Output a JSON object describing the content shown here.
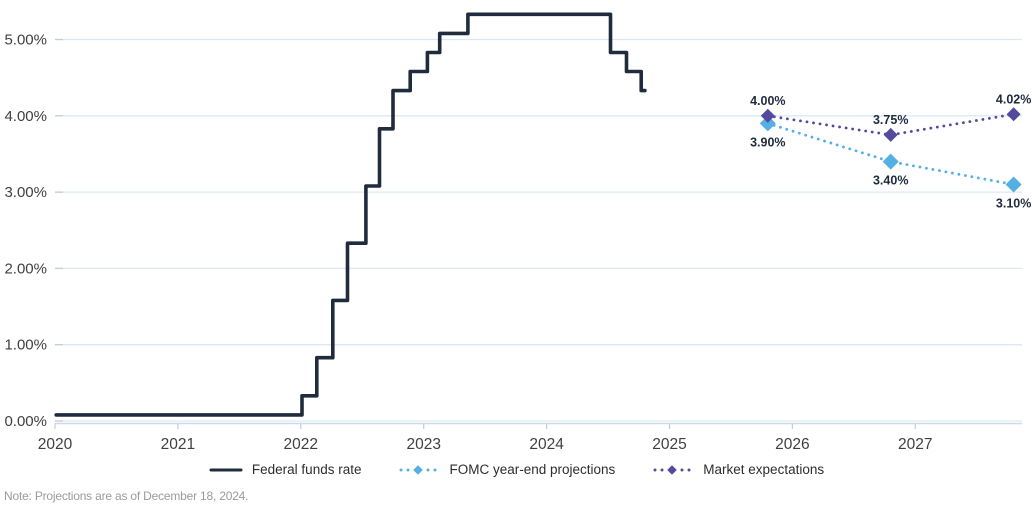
{
  "note": "Note: Projections are as of December 18, 2024.",
  "colors": {
    "federal_funds": "#202c3e",
    "fomc": "#54afe3",
    "market": "#544a9d",
    "grid": "#dbe9f5",
    "axis": "#cbdded",
    "tick": "#c2cdd8",
    "axis_label": "#3f3f3f",
    "legend_text": "#2d2d2d",
    "data_label": "#1f2b3d",
    "note_text": "#9b9b9b",
    "background": "#ffffff"
  },
  "chart_data": {
    "type": "line",
    "title": "",
    "xlabel": "",
    "ylabel": "",
    "grid": true,
    "legend_position": "bottom-center",
    "x_axis": {
      "range": [
        2020,
        2027.9
      ],
      "ticks": [
        2020,
        2021,
        2022,
        2023,
        2024,
        2025,
        2026,
        2027
      ],
      "labels": [
        "2020",
        "2021",
        "2022",
        "2023",
        "2024",
        "2025",
        "2026",
        "2027"
      ]
    },
    "y_axis": {
      "range": [
        0,
        5.5
      ],
      "ticks": [
        0,
        1,
        2,
        3,
        4,
        5
      ],
      "labels": [
        "0.00%",
        "1.00%",
        "2.00%",
        "3.00%",
        "4.00%",
        "5.00%"
      ]
    },
    "series": [
      {
        "name": "Federal funds rate",
        "type": "step",
        "color_key": "federal_funds",
        "points": [
          [
            2020.01,
            0.08
          ],
          [
            2022.01,
            0.33
          ],
          [
            2022.13,
            0.83
          ],
          [
            2022.26,
            1.58
          ],
          [
            2022.38,
            2.33
          ],
          [
            2022.53,
            3.08
          ],
          [
            2022.64,
            3.83
          ],
          [
            2022.75,
            4.33
          ],
          [
            2022.89,
            4.58
          ],
          [
            2023.03,
            4.83
          ],
          [
            2023.13,
            5.08
          ],
          [
            2023.36,
            5.33
          ],
          [
            2024.52,
            4.83
          ],
          [
            2024.65,
            4.58
          ],
          [
            2024.77,
            4.33
          ]
        ],
        "end_x": 2024.8
      },
      {
        "name": "FOMC year-end projections",
        "type": "dotted-diamond",
        "color_key": "fomc",
        "marker_size": 8,
        "label_side": "below",
        "points": [
          [
            2025.8,
            3.9
          ],
          [
            2026.8,
            3.4
          ],
          [
            2027.8,
            3.1
          ]
        ],
        "point_labels": [
          "3.90%",
          "3.40%",
          "3.10%"
        ]
      },
      {
        "name": "Market expectations",
        "type": "dotted-diamond",
        "color_key": "market",
        "marker_size": 7,
        "label_side": "above",
        "points": [
          [
            2025.8,
            4.0
          ],
          [
            2026.8,
            3.75
          ],
          [
            2027.8,
            4.02
          ]
        ],
        "point_labels": [
          "4.00%",
          "3.75%",
          "4.02%"
        ]
      }
    ]
  }
}
